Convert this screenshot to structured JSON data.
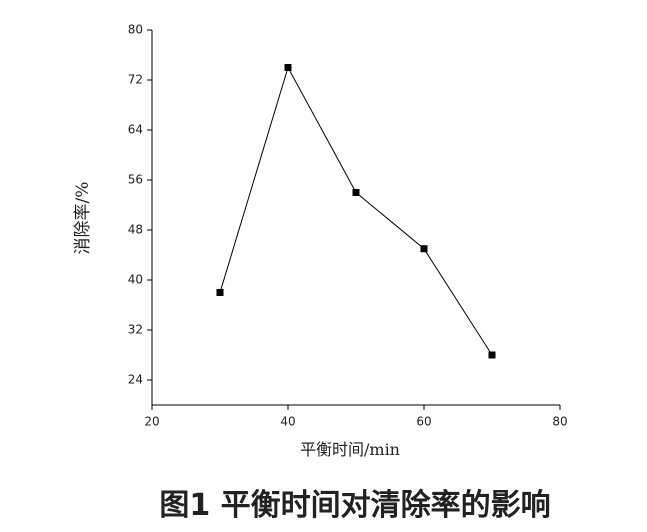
{
  "chart_data": {
    "type": "line",
    "caption": "图1  平衡时间对清除率的影响",
    "x_label": "平衡时间/min",
    "y_label": "消除率/%",
    "x": [
      30,
      40,
      50,
      60,
      70
    ],
    "series": [
      {
        "color": "#000000",
        "values": [
          38,
          74,
          54,
          45,
          28
        ]
      }
    ],
    "xlim": [
      20,
      80
    ],
    "xticks": [
      20,
      40,
      60,
      80
    ],
    "ylim": [
      20,
      80
    ],
    "yticks": [
      24,
      32,
      40,
      48,
      56,
      64,
      72,
      80
    ],
    "grid": false
  }
}
